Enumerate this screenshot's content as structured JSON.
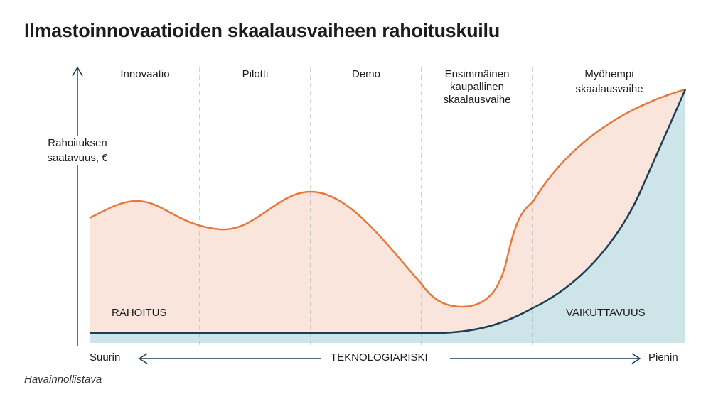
{
  "title": "Ilmastoinnovaatioiden skaalausvaiheen rahoituskuilu",
  "y_axis_label": [
    "Rahoituksen",
    "saatavuus, €"
  ],
  "phases": [
    {
      "label": [
        "Innovaatio"
      ]
    },
    {
      "label": [
        "Pilotti"
      ]
    },
    {
      "label": [
        "Demo"
      ]
    },
    {
      "label": [
        "Ensimmäinen",
        "kaupallinen",
        "skaalausvaihe"
      ]
    },
    {
      "label": [
        "Myöhempi",
        "skaalausvaihe"
      ]
    }
  ],
  "areas": {
    "funding": "RAHOITUS",
    "impact": "VAIKUTTAVUUS"
  },
  "x_axis": {
    "left": "Suurin",
    "center": "TEKNOLOGIARISKI",
    "right": "Pienin"
  },
  "note": "Havainnollistava",
  "colors": {
    "funding_line": "#e8773a",
    "funding_fill": "#fae5dc",
    "impact_line": "#1b3d55",
    "impact_fill": "#cde4e9",
    "divider": "#9aaab3"
  }
}
